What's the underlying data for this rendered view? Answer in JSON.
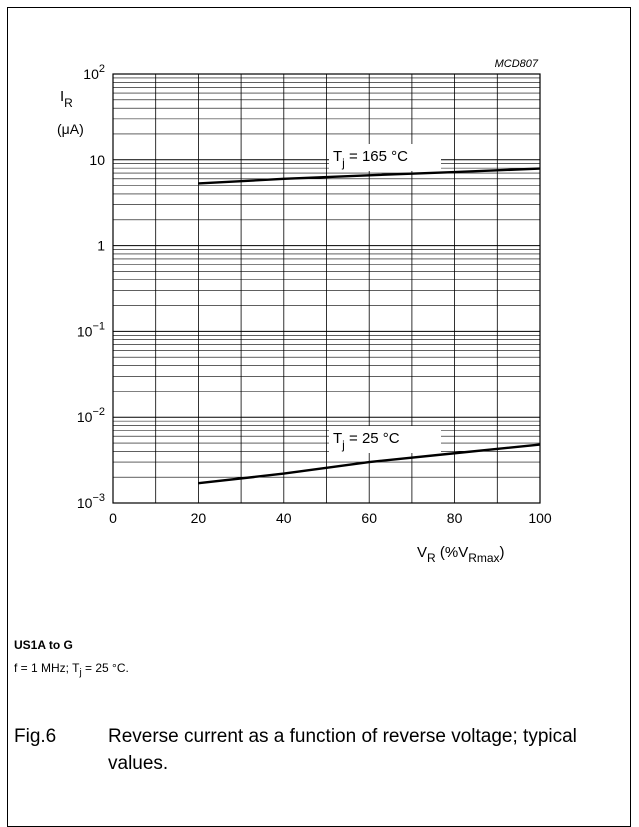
{
  "chart_data": {
    "type": "line",
    "code": "MCD807",
    "x_ticks": [
      "0",
      "20",
      "40",
      "60",
      "80",
      "100"
    ],
    "xlim": [
      0,
      100
    ],
    "xlabel": {
      "main": "V",
      "sub": "R",
      "mid": " (%V",
      "sub2": "Rmax",
      "end": ")"
    },
    "ylabel": {
      "main": "I",
      "sub": "R",
      "unit": "(μA)"
    },
    "y_scale": "log",
    "ylim": [
      0.001,
      100
    ],
    "y_ticks": [
      {
        "value": 100,
        "base": "10",
        "exp": "2"
      },
      {
        "value": 10,
        "base": "10",
        "exp": ""
      },
      {
        "value": 1,
        "base": "1",
        "exp": ""
      },
      {
        "value": 0.1,
        "base": "10",
        "exp": "−1"
      },
      {
        "value": 0.01,
        "base": "10",
        "exp": "−2"
      },
      {
        "value": 0.001,
        "base": "10",
        "exp": "−3"
      }
    ],
    "grid": true,
    "series": [
      {
        "label_pre": "T",
        "label_sub": "j",
        "label_post": " = 165 °C",
        "x": [
          20,
          40,
          60,
          80,
          100
        ],
        "y": [
          5.3,
          6.0,
          6.6,
          7.2,
          7.9
        ]
      },
      {
        "label_pre": "T",
        "label_sub": "j",
        "label_post": " = 25 °C",
        "x": [
          20,
          40,
          60,
          80,
          100
        ],
        "y": [
          0.0017,
          0.0022,
          0.003,
          0.0038,
          0.0048
        ]
      }
    ]
  },
  "caption": {
    "device": "US1A to G",
    "cond_pre": "f = 1 MHz; T",
    "cond_sub": "j",
    "cond_post": " = 25 °C.",
    "fig_num": "Fig.6",
    "fig_text": "Reverse current as a function of reverse voltage; typical values."
  }
}
